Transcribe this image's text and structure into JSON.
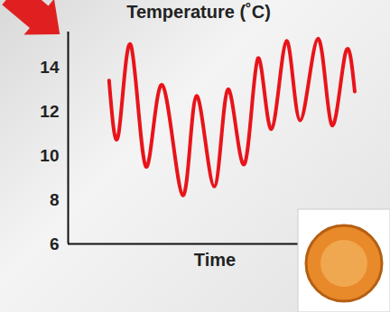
{
  "chart_data": {
    "type": "line",
    "title": "Temperature (˚C)",
    "x_label": "Time",
    "x": [
      0,
      0.7,
      1.6,
      2.7,
      3.9,
      5.4,
      6.4,
      7.7,
      8.7,
      9.9,
      10.9,
      11.9,
      13.0,
      14.0,
      15.3,
      16.3,
      17.3,
      18.0
    ],
    "values": [
      13.4,
      11.0,
      15.0,
      9.5,
      13.2,
      8.2,
      12.7,
      8.6,
      13.0,
      9.6,
      14.4,
      11.2,
      15.2,
      11.6,
      15.3,
      11.4,
      14.6,
      12.9
    ],
    "color": "#e8141a",
    "xlim": [
      -3,
      18.5
    ],
    "xticks": [],
    "ylim": [
      6,
      15.6
    ],
    "yticks": [
      6,
      8,
      10,
      12,
      14
    ],
    "tick_labels": "y",
    "grid": false
  }
}
